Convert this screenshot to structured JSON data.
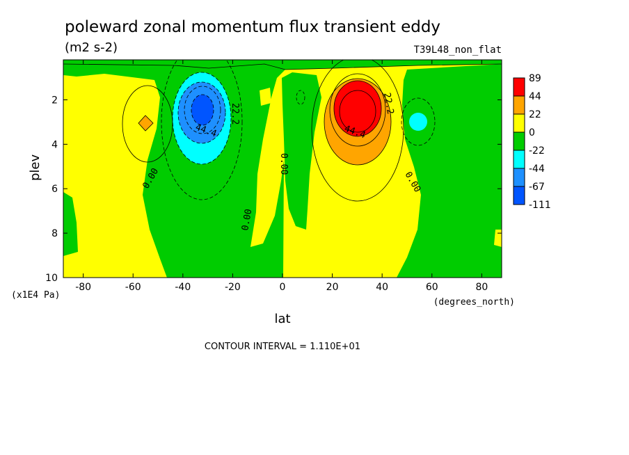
{
  "chart_data": {
    "type": "heatmap",
    "title": "poleward zonal momentum flux transient eddy",
    "units": "(m2 s-2)",
    "experiment": "T39L48_non_flat",
    "xlabel": "lat",
    "x_units": "(degrees_north)",
    "ylabel": "plev",
    "y_units": "(x1E4 Pa)",
    "footer": "CONTOUR INTERVAL = 1.110E+01",
    "xlim": [
      -88,
      88
    ],
    "ylim": [
      10,
      0.2
    ],
    "x_ticks": [
      -80,
      -60,
      -40,
      -20,
      0,
      20,
      40,
      60,
      80
    ],
    "y_ticks": [
      2,
      4,
      6,
      8,
      10
    ],
    "colorbar": {
      "levels": [
        89,
        44,
        22,
        0,
        -22,
        -44,
        -67,
        -111
      ],
      "colors": [
        "#ff0000",
        "#ffa500",
        "#ffff00",
        "#00cc00",
        "#00ffff",
        "#1e90ff",
        "#0055ff"
      ]
    },
    "contour_labels": [
      {
        "text": "22.2",
        "lat": -20,
        "plev": 2.9
      },
      {
        "text": "44.4",
        "lat": -31,
        "plev": 3.3
      },
      {
        "text": "0.00",
        "lat": -51,
        "plev": 5.8
      },
      {
        "text": "0.00",
        "lat": -12,
        "plev": 7.9
      },
      {
        "text": "0.00",
        "lat": 0.5,
        "plev": 4.8
      },
      {
        "text": "22.2",
        "lat": 41,
        "plev": 2.0
      },
      {
        "text": "44.4",
        "lat": 29,
        "plev": 3.3
      },
      {
        "text": "0.00",
        "lat": 52,
        "plev": 6.0
      }
    ],
    "features": [
      {
        "name": "southern negative core",
        "lat": -31,
        "plev": 2.5,
        "min_value": -67
      },
      {
        "name": "northern positive core",
        "lat": 30,
        "plev": 2.5,
        "max_value": 89
      },
      {
        "name": "weak positive",
        "lat": -56,
        "plev": 3.0,
        "value": 22
      },
      {
        "name": "weak negative",
        "lat": 54,
        "plev": 3.0,
        "value": -22
      }
    ]
  }
}
